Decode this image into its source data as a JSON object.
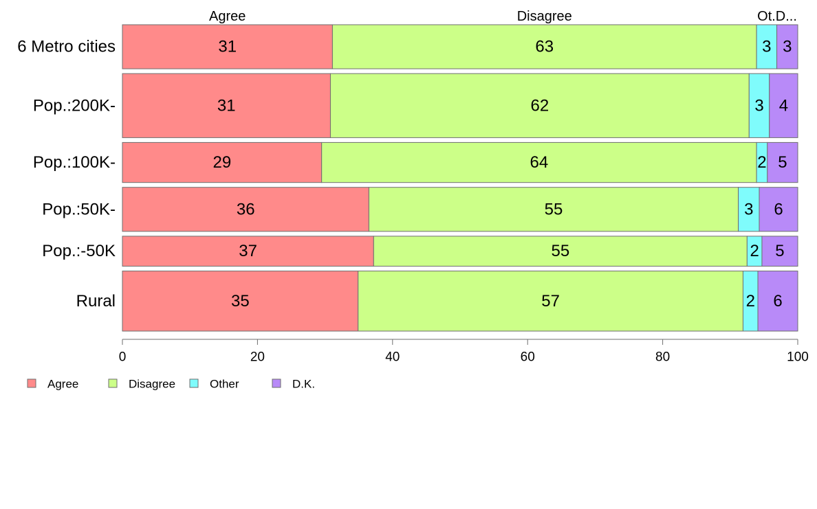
{
  "chart_data": {
    "type": "bar",
    "orientation": "horizontal",
    "stacked": true,
    "title": "",
    "xlabel": "",
    "ylabel": "",
    "xlim": [
      0,
      100
    ],
    "x_ticks": [
      0,
      20,
      40,
      60,
      80,
      100
    ],
    "grid": false,
    "legend_position": "bottom-left",
    "column_headers": [
      "Agree",
      "Disagree",
      "Ot.D..."
    ],
    "categories": [
      "6 Metro cities",
      "Pop.:200K-",
      "Pop.:100K-",
      "Pop.:50K-",
      "Pop.:-50K",
      "Rural"
    ],
    "bar_weights": [
      1.1,
      1.6,
      1.0,
      1.1,
      0.75,
      1.5
    ],
    "series": [
      {
        "name": "Agree",
        "color": "#ff8a8a",
        "values": [
          31.1,
          30.8,
          29.5,
          36.5,
          37.2,
          34.9
        ],
        "labels": [
          "31",
          "31",
          "29",
          "36",
          "37",
          "35"
        ]
      },
      {
        "name": "Disagree",
        "color": "#ccff88",
        "values": [
          62.8,
          62.0,
          64.4,
          54.7,
          55.3,
          57.0
        ],
        "labels": [
          "63",
          "62",
          "64",
          "55",
          "55",
          "57"
        ]
      },
      {
        "name": "Other",
        "color": "#7ffcfc",
        "values": [
          3.0,
          3.0,
          1.6,
          3.1,
          2.2,
          2.2
        ],
        "labels": [
          "3",
          "3",
          "2",
          "3",
          "2",
          "2"
        ]
      },
      {
        "name": "D.K.",
        "color": "#b88af8",
        "values": [
          3.1,
          4.2,
          4.5,
          5.7,
          5.3,
          5.9
        ],
        "labels": [
          "3",
          "4",
          "5",
          "6",
          "5",
          "6"
        ]
      }
    ]
  }
}
